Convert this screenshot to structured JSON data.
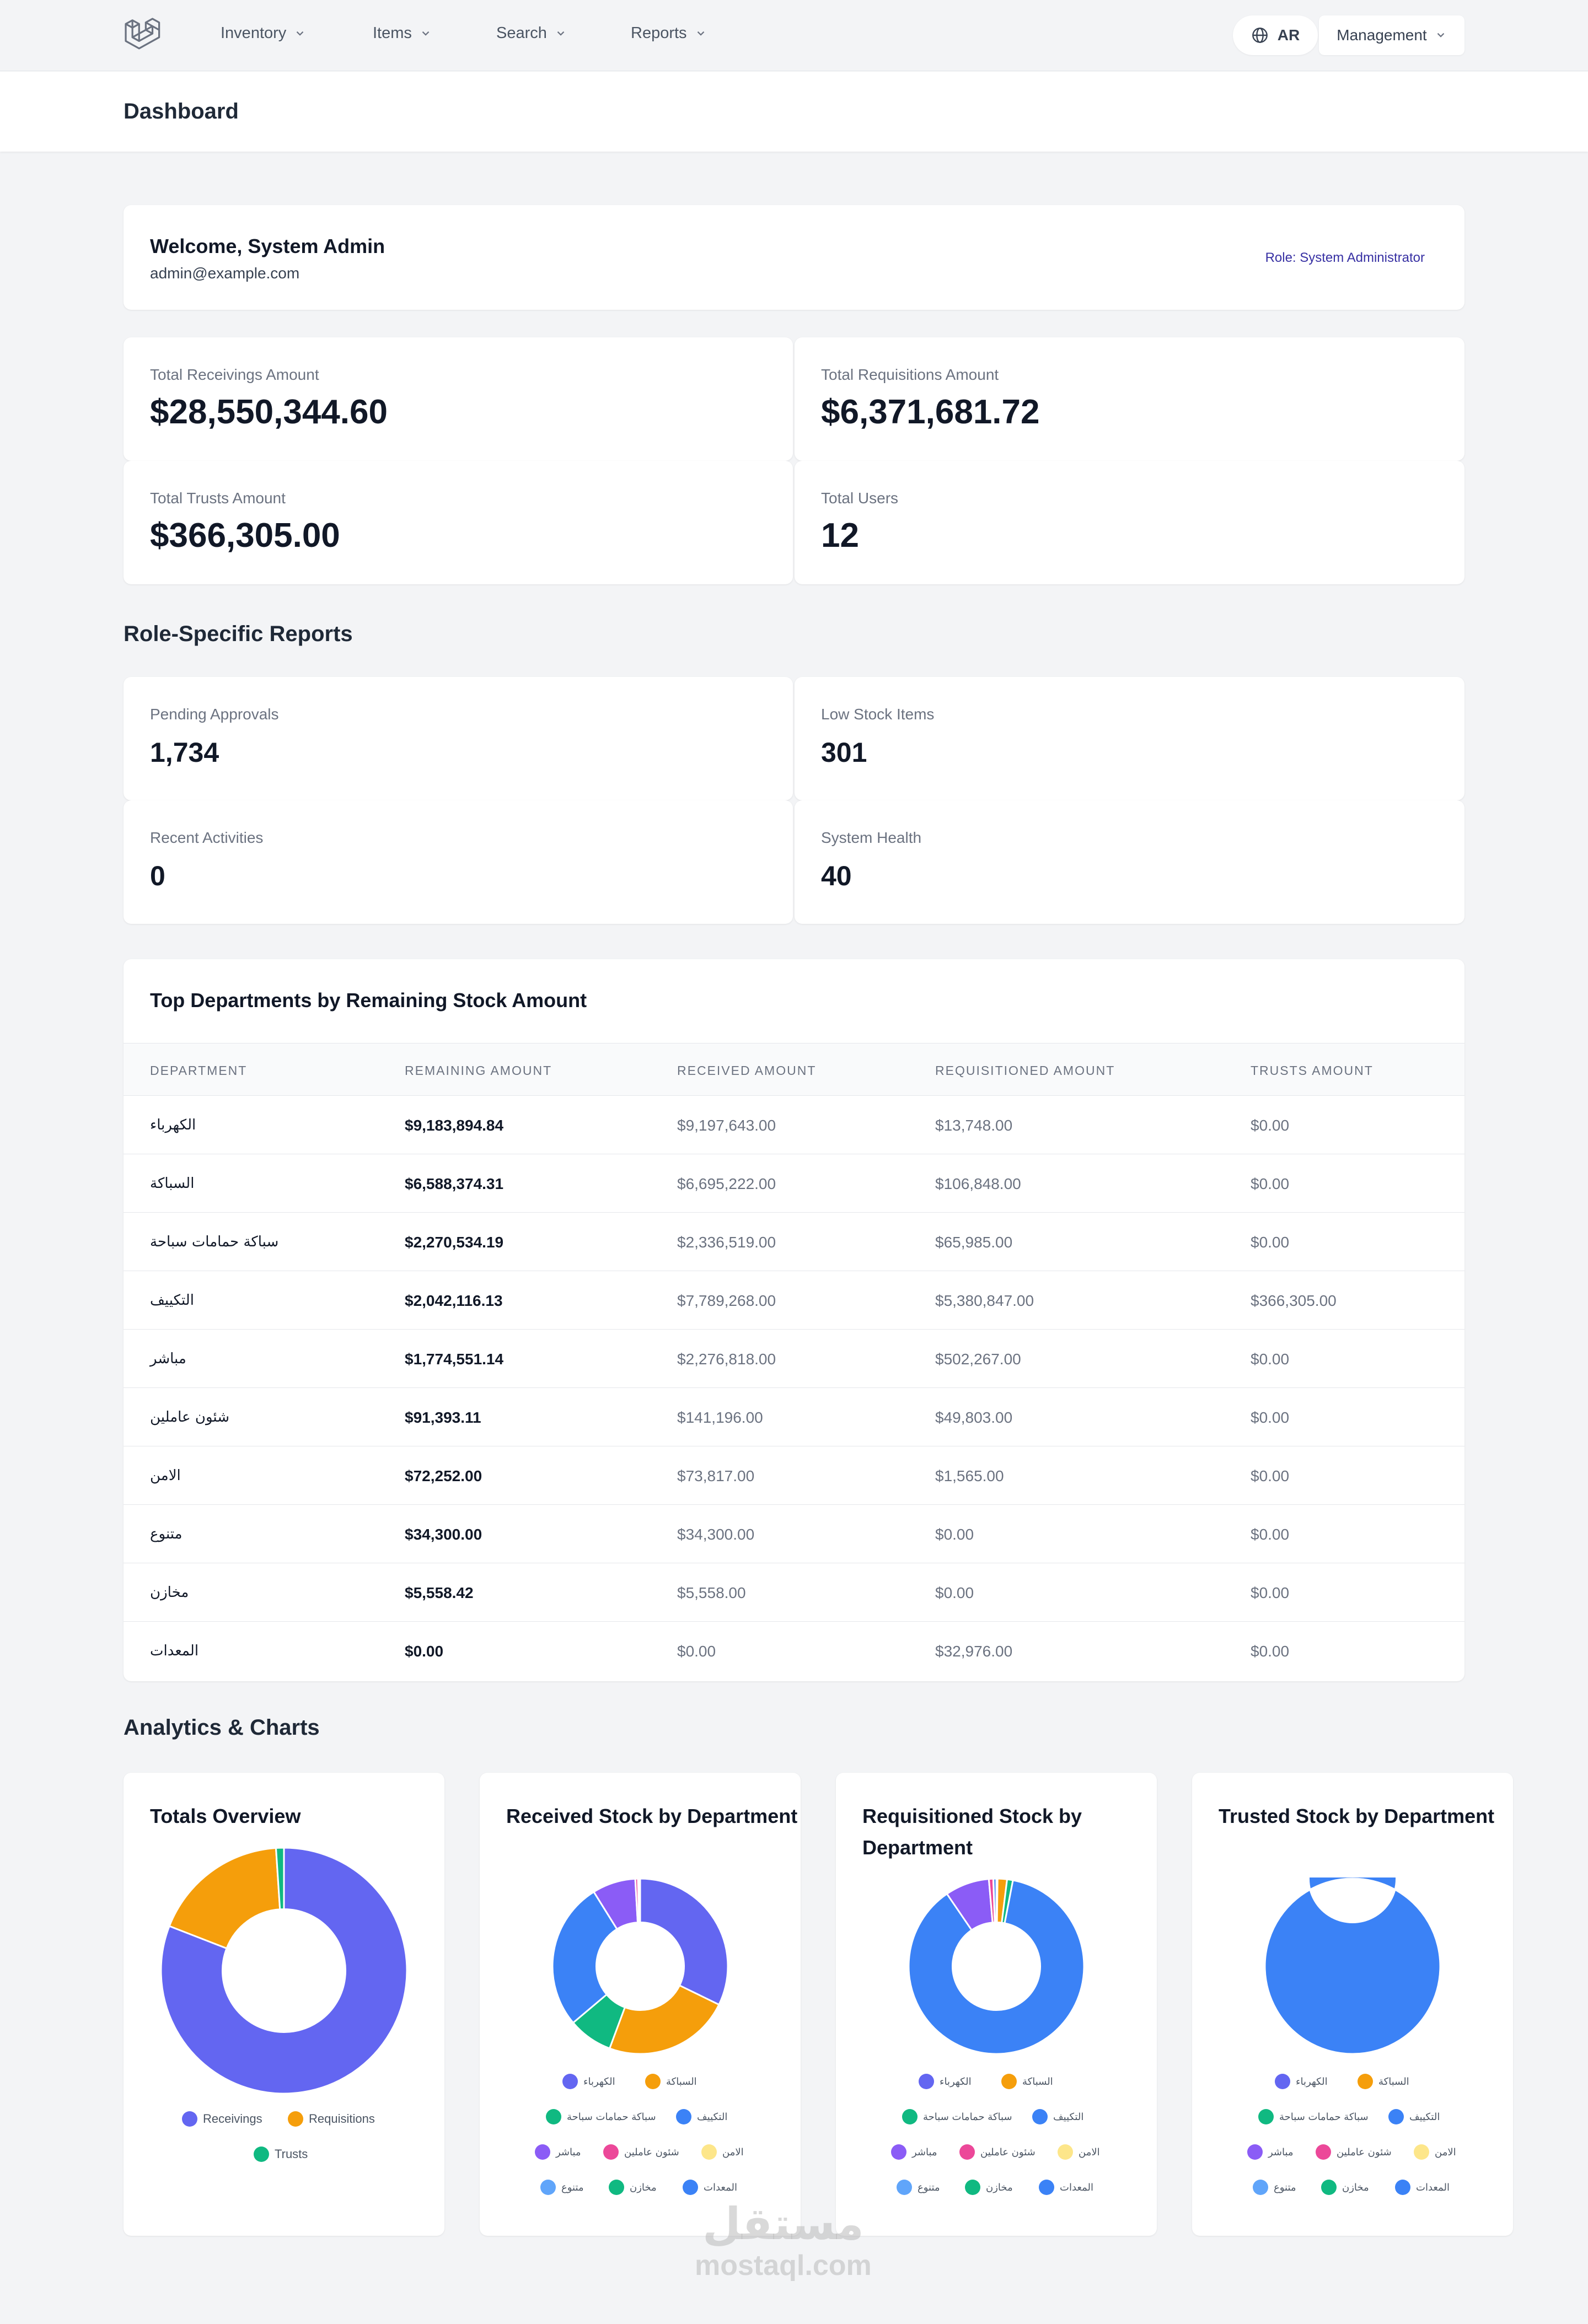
{
  "nav": {
    "items": [
      {
        "label": "Inventory"
      },
      {
        "label": "Items"
      },
      {
        "label": "Search"
      },
      {
        "label": "Reports"
      }
    ],
    "lang_label": "AR",
    "management_label": "Management"
  },
  "header": {
    "title": "Dashboard"
  },
  "welcome": {
    "title": "Welcome, System Admin",
    "email": "admin@example.com",
    "role": "Role: System Administrator"
  },
  "stats": [
    {
      "label": "Total Receivings Amount",
      "value": "$28,550,344.60"
    },
    {
      "label": "Total Requisitions Amount",
      "value": "$6,371,681.72"
    },
    {
      "label": "Total Trusts Amount",
      "value": "$366,305.00"
    },
    {
      "label": "Total Users",
      "value": "12"
    }
  ],
  "role_reports": {
    "title": "Role-Specific Reports",
    "items": [
      {
        "label": "Pending Approvals",
        "value": "1,734"
      },
      {
        "label": "Low Stock Items",
        "value": "301"
      },
      {
        "label": "Recent Activities",
        "value": "0"
      },
      {
        "label": "System Health",
        "value": "40"
      }
    ]
  },
  "table": {
    "title": "Top Departments by Remaining Stock Amount",
    "headers": [
      "DEPARTMENT",
      "REMAINING AMOUNT",
      "RECEIVED AMOUNT",
      "REQUISITIONED AMOUNT",
      "TRUSTS AMOUNT"
    ],
    "rows": [
      [
        "الكهرباء",
        "$9,183,894.84",
        "$9,197,643.00",
        "$13,748.00",
        "$0.00"
      ],
      [
        "السباكة",
        "$6,588,374.31",
        "$6,695,222.00",
        "$106,848.00",
        "$0.00"
      ],
      [
        "سباكة حمامات سباحة",
        "$2,270,534.19",
        "$2,336,519.00",
        "$65,985.00",
        "$0.00"
      ],
      [
        "التكييف",
        "$2,042,116.13",
        "$7,789,268.00",
        "$5,380,847.00",
        "$366,305.00"
      ],
      [
        "مباشر",
        "$1,774,551.14",
        "$2,276,818.00",
        "$502,267.00",
        "$0.00"
      ],
      [
        "شئون عاملين",
        "$91,393.11",
        "$141,196.00",
        "$49,803.00",
        "$0.00"
      ],
      [
        "الامن",
        "$72,252.00",
        "$73,817.00",
        "$1,565.00",
        "$0.00"
      ],
      [
        "متنوع",
        "$34,300.00",
        "$34,300.00",
        "$0.00",
        "$0.00"
      ],
      [
        "مخازن",
        "$5,558.42",
        "$5,558.00",
        "$0.00",
        "$0.00"
      ],
      [
        "المعدات",
        "$0.00",
        "$0.00",
        "$32,976.00",
        "$0.00"
      ]
    ]
  },
  "analytics": {
    "title": "Analytics & Charts",
    "colors": {
      "indigo": "#6366f1",
      "amber": "#f59e0b",
      "emerald": "#10b981",
      "blue": "#3b82f6",
      "violet": "#8b5cf6",
      "pink": "#ec4899",
      "yellow": "#fde68a",
      "light_blue": "#60a5fa",
      "green": "#10b981",
      "blue2": "#3b82f6"
    },
    "charts": [
      {
        "title": "Totals Overview",
        "legend": [
          "Receivings",
          "Requisitions",
          "Trusts"
        ],
        "colors": [
          "#6366f1",
          "#f59e0b",
          "#10b981"
        ],
        "values": [
          28550344.6,
          6371681.72,
          366305.0
        ]
      },
      {
        "title": "Received Stock by Department",
        "legend": [
          "الكهرباء",
          "السباكة",
          "سباكة حمامات سباحة",
          "التكييف",
          "مباشر",
          "شئون عاملين",
          "الامن",
          "متنوع",
          "مخازن",
          "المعدات"
        ],
        "colors": [
          "#6366f1",
          "#f59e0b",
          "#10b981",
          "#3b82f6",
          "#8b5cf6",
          "#ec4899",
          "#fde68a",
          "#60a5fa",
          "#10b981",
          "#3b82f6"
        ],
        "values": [
          9197643.0,
          6695222.0,
          2336519.0,
          7789268.0,
          2276818.0,
          141196.0,
          73817.0,
          34300.0,
          5558.0,
          0.0
        ]
      },
      {
        "title": "Requisitioned Stock by Department",
        "legend": [
          "الكهرباء",
          "السباكة",
          "سباكة حمامات سباحة",
          "التكييف",
          "مباشر",
          "شئون عاملين",
          "الامن",
          "متنوع",
          "مخازن",
          "المعدات"
        ],
        "colors": [
          "#6366f1",
          "#f59e0b",
          "#10b981",
          "#3b82f6",
          "#8b5cf6",
          "#ec4899",
          "#fde68a",
          "#60a5fa",
          "#10b981",
          "#3b82f6"
        ],
        "values": [
          13748.0,
          106848.0,
          65985.0,
          5380847.0,
          502267.0,
          49803.0,
          1565.0,
          0.0,
          0.0,
          32976.0
        ]
      },
      {
        "title": "Trusted Stock by Department",
        "legend": [
          "الكهرباء",
          "السباكة",
          "سباكة حمامات سباحة",
          "التكييف",
          "مباشر",
          "شئون عاملين",
          "الامن",
          "متنوع",
          "مخازن",
          "المعدات"
        ],
        "colors": [
          "#6366f1",
          "#f59e0b",
          "#10b981",
          "#3b82f6",
          "#8b5cf6",
          "#ec4899",
          "#fde68a",
          "#60a5fa",
          "#10b981",
          "#3b82f6"
        ],
        "values": [
          0,
          0,
          0,
          366305.0,
          0,
          0,
          0,
          0,
          0,
          0
        ]
      }
    ]
  },
  "watermark": {
    "brand_ar": "مستقل",
    "brand_en": "mostaql.com"
  }
}
